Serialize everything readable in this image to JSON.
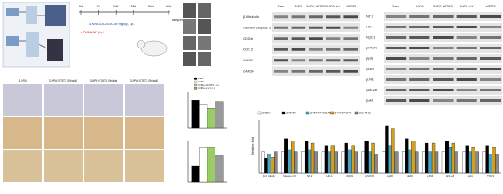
{
  "timeline": {
    "days": [
      "0d",
      "7d",
      "14d",
      "21d",
      "28d",
      "42d"
    ],
    "end_label": "sampling",
    "treatment": "3-NPA (10-20-30-40 mg/kg, i.p.)",
    "injection": "• PLGA-NP (i.c.)"
  },
  "blot_left": {
    "columns": [
      "Sham",
      "3-NPA",
      "3-NPA+siSTAT3",
      "3-NPA+si-V",
      "siSTAT3"
    ],
    "rows": [
      "β-III tubulin",
      "Cleaved caspase 3",
      "CD11b",
      "COX 2",
      "4-HNE",
      "GAPDH"
    ]
  },
  "blot_right": {
    "columns": [
      "Sham",
      "3-NPA",
      "3-NPA+siSTAT3",
      "3-NPA+si-V",
      "siSTAT3"
    ],
    "rows": [
      "Nrf 2",
      "HO-1",
      "NQO1",
      "pSTAT3",
      "pp38",
      "pERK",
      "pJNK",
      "pNF-κB",
      "pAkt"
    ]
  },
  "histology": {
    "columns": [
      "3-NPA",
      "3-NPA+STAT3 (Striatal)",
      "3-NPA+STAT3 (Striatal)",
      "3-NPA+STAT3 (Striatal)"
    ]
  },
  "small_charts": [
    {
      "type": "bar",
      "series": [
        {
          "name": "Sham",
          "color": "#000000",
          "values": [
            1.0
          ]
        },
        {
          "name": "3-NPA",
          "color": "#ffffff",
          "values": [
            0.85
          ]
        },
        {
          "name": "3-NPA+siSTAT3 (i.c.)",
          "color": "#9ccc65",
          "values": [
            0.7
          ]
        },
        {
          "name": "3-NPA+si-V (i.c.)",
          "color": "#999999",
          "values": [
            0.95
          ]
        }
      ],
      "ylim": [
        0,
        1.3
      ]
    },
    {
      "type": "bar",
      "series": [
        {
          "color": "#000000",
          "values": [
            0.4
          ]
        },
        {
          "color": "#ffffff",
          "values": [
            0.85
          ]
        },
        {
          "color": "#9ccc65",
          "values": [
            0.85
          ]
        },
        {
          "color": "#999999",
          "values": [
            0.65
          ]
        }
      ],
      "ylim": [
        0,
        1
      ]
    }
  ],
  "bar_chart": {
    "type": "bar",
    "y_label": "Relative fold",
    "categories": [
      "β-III tubulin",
      "Cleaved c3",
      "Nrf 2",
      "HO-1",
      "NQO1",
      "pSTAT3",
      "pp38",
      "pERK",
      "pJNK",
      "pNF-κB",
      "pAkt",
      "STAT3"
    ],
    "series": [
      {
        "name": "Sham",
        "color": "#ffffff",
        "values": [
          1,
          1,
          1,
          1,
          1,
          1,
          1,
          1,
          1,
          1,
          1,
          1
        ]
      },
      {
        "name": "3-NPA",
        "color": "#000000",
        "values": [
          0.7,
          1.6,
          1.5,
          1.3,
          1.4,
          1.5,
          2.2,
          1.6,
          1.4,
          1.5,
          1.3,
          1.3
        ]
      },
      {
        "name": "3-NPA+siSTAT3",
        "color": "#4aa3c8",
        "values": [
          0.9,
          1.1,
          1.1,
          1.0,
          1.1,
          1.0,
          1.3,
          1.1,
          1.0,
          1.2,
          1.0,
          0.9
        ]
      },
      {
        "name": "3-NPA+si-V",
        "color": "#d4a017",
        "values": [
          0.75,
          1.5,
          1.4,
          1.3,
          1.3,
          1.4,
          2.1,
          1.5,
          1.4,
          1.4,
          1.2,
          1.2
        ]
      },
      {
        "name": "siSTAT3",
        "color": "#888888",
        "values": [
          1,
          1,
          1,
          1,
          1,
          0.9,
          1,
          1,
          1,
          1,
          1,
          0.9
        ]
      }
    ],
    "ylim": [
      0,
      2.5
    ]
  }
}
